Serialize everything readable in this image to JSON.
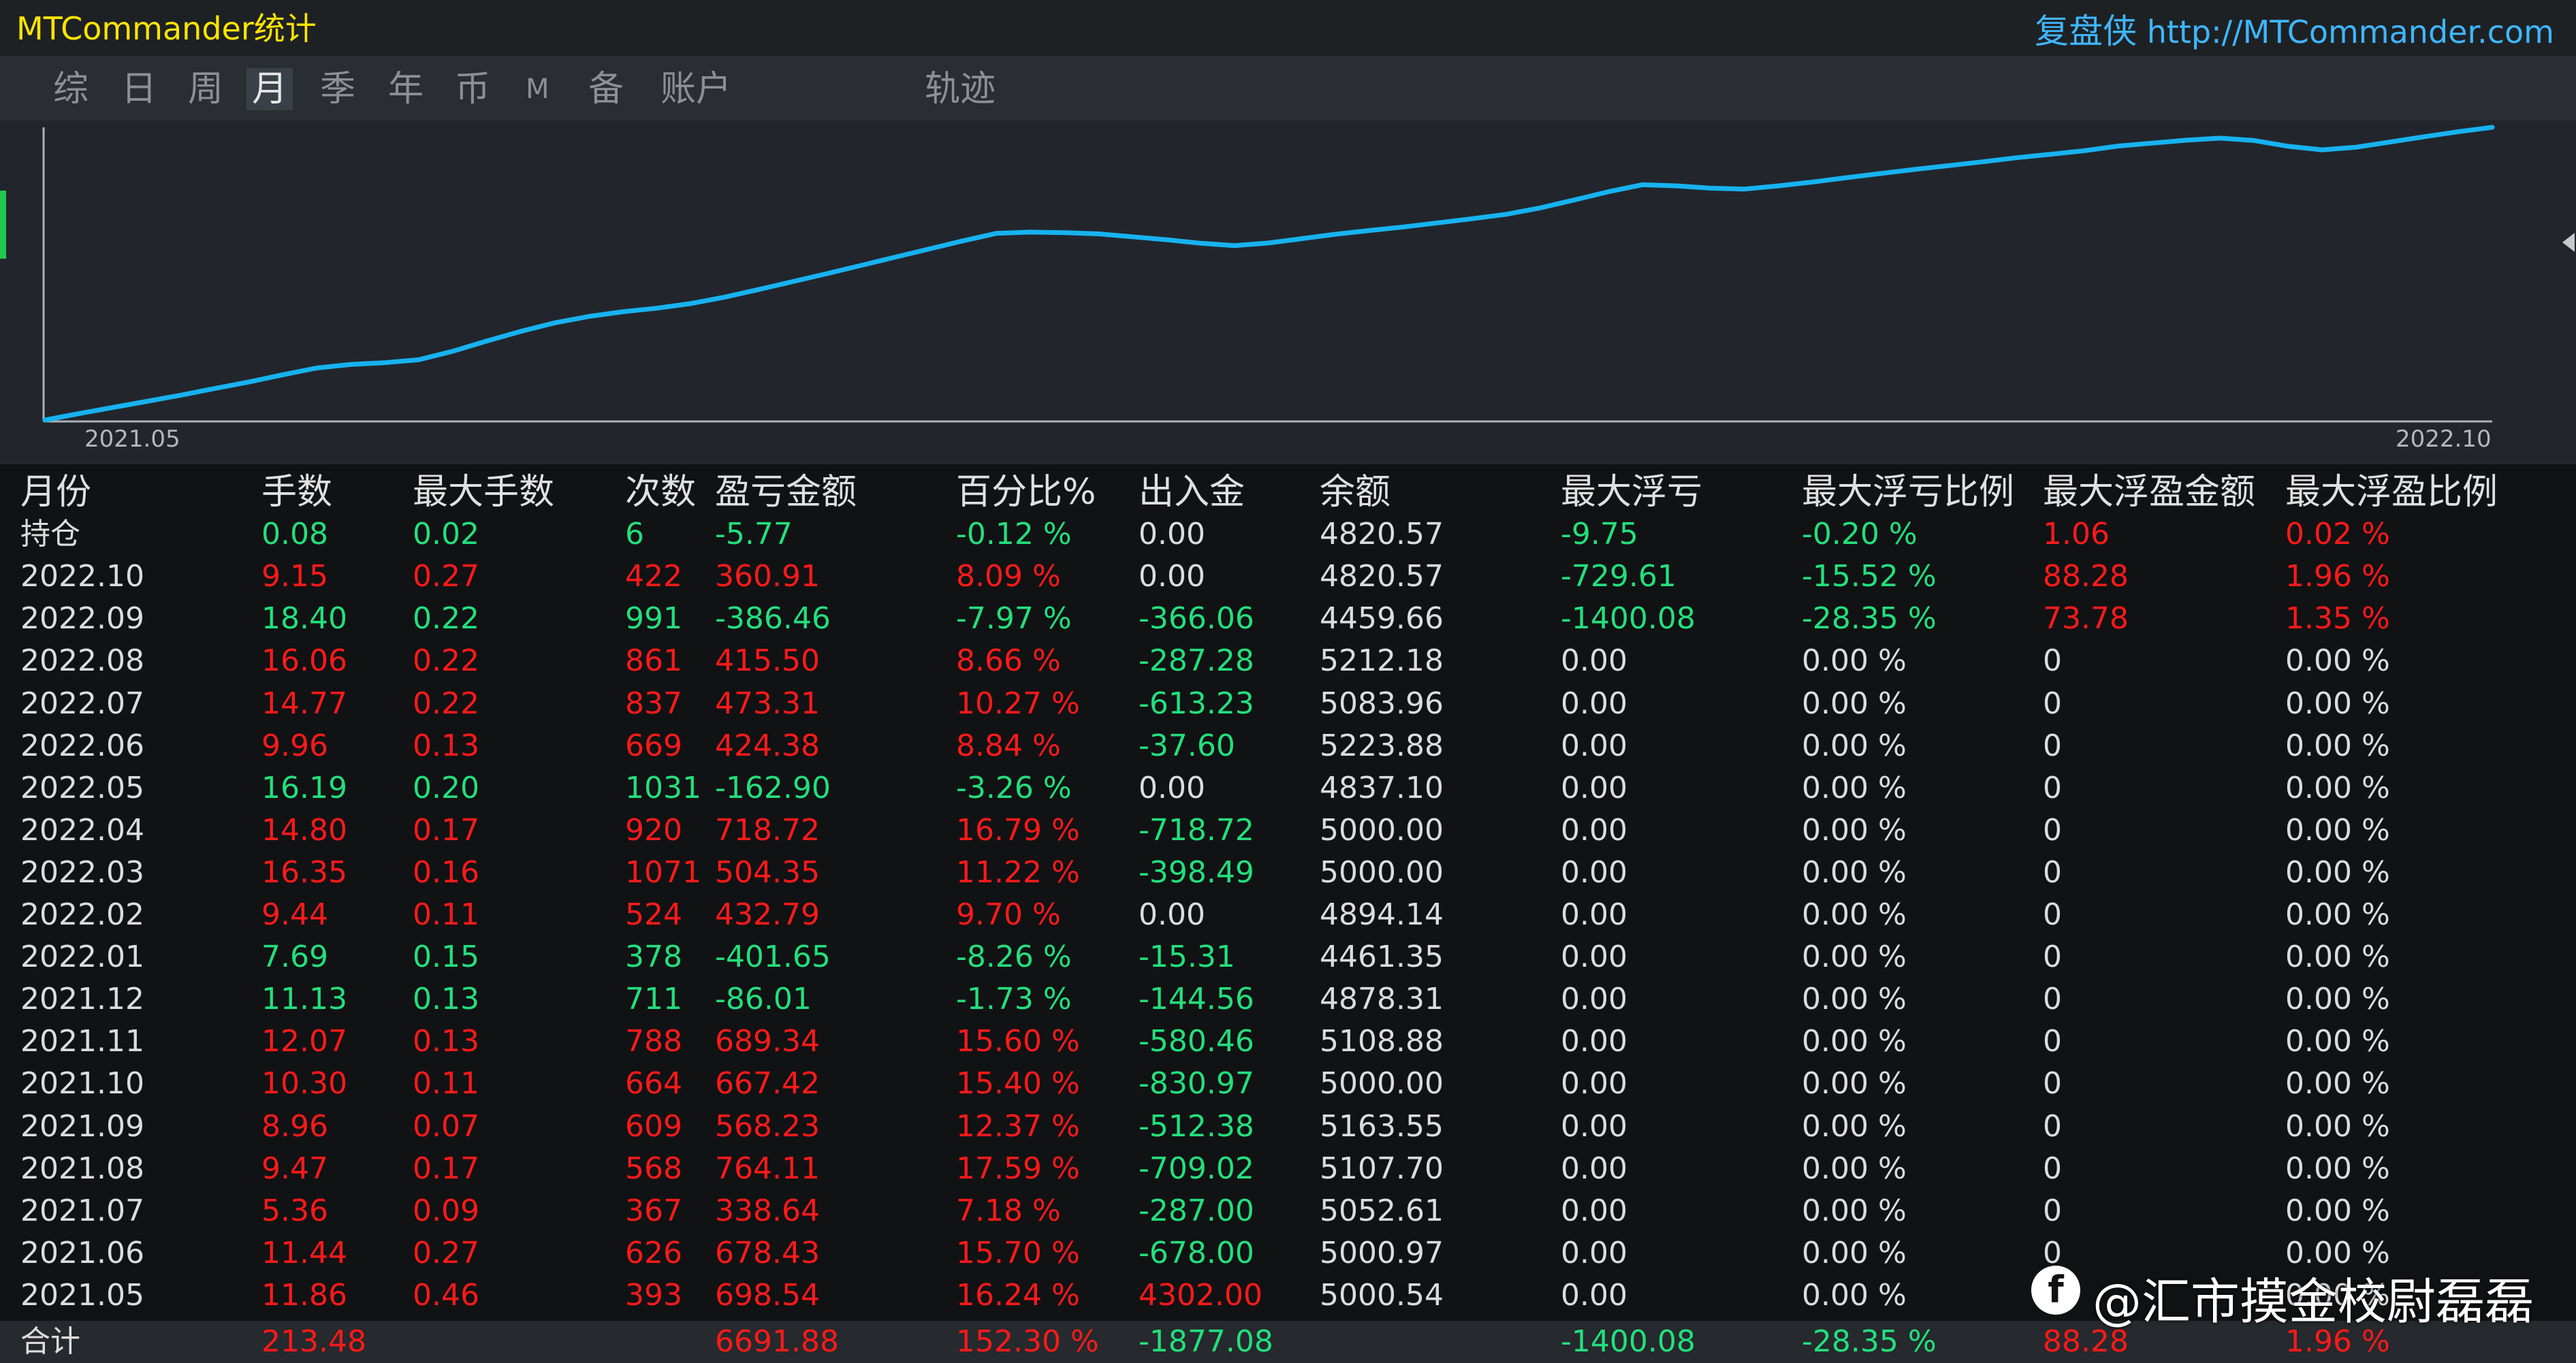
{
  "window": {
    "title": "MTCommander统计",
    "brand_cn": "复盘侠",
    "brand_url": "http://MTCommander.com"
  },
  "tabs": [
    {
      "label": "综",
      "active": false
    },
    {
      "label": "日",
      "active": false
    },
    {
      "label": "周",
      "active": false
    },
    {
      "label": "月",
      "active": true
    },
    {
      "label": "季",
      "active": false
    },
    {
      "label": "年",
      "active": false
    },
    {
      "label": "币",
      "active": false
    },
    {
      "label": "M",
      "active": false
    },
    {
      "label": "备",
      "active": false
    },
    {
      "label": "账户",
      "active": false
    },
    {
      "label": "轨迹",
      "active": false
    }
  ],
  "chart_data": {
    "type": "line",
    "x_start_label": "2021.05",
    "x_end_label": "2022.10",
    "line_color": "#17b2f0",
    "grid": false,
    "values": [
      0,
      2.2,
      4.3,
      6.4,
      8.5,
      10.8,
      13.0,
      15.5,
      17.8,
      19.0,
      19.6,
      20.6,
      23.5,
      27.0,
      30.3,
      33.2,
      35.4,
      37.0,
      38.2,
      39.8,
      42.0,
      44.6,
      47.3,
      50.0,
      52.8,
      55.6,
      58.4,
      61.2,
      63.8,
      64.2,
      64.0,
      63.6,
      62.6,
      61.6,
      60.4,
      59.6,
      60.5,
      62.0,
      63.5,
      64.8,
      66.0,
      67.4,
      68.8,
      70.3,
      72.5,
      75.2,
      78.0,
      80.4,
      80.0,
      79.2,
      78.9,
      80.0,
      81.3,
      82.8,
      84.2,
      85.6,
      86.9,
      88.2,
      89.6,
      90.8,
      92.0,
      93.6,
      94.6,
      95.6,
      96.3,
      95.5,
      93.5,
      92.3,
      93.2,
      95.0,
      96.8,
      98.5,
      100
    ]
  },
  "table": {
    "headers": [
      "月份",
      "手数",
      "最大手数",
      "次数",
      "盈亏金额",
      "百分比%",
      "出入金",
      "余额",
      "最大浮亏",
      "最大浮亏比例",
      "最大浮盈金额",
      "最大浮盈比例"
    ],
    "rows": [
      [
        "持仓",
        "0.08",
        "0.02",
        "6",
        "-5.77",
        "-0.12 %",
        "0.00",
        "4820.57",
        "-9.75",
        "-0.20 %",
        "1.06",
        "0.02 %"
      ],
      [
        "2022.10",
        "9.15",
        "0.27",
        "422",
        "360.91",
        "8.09 %",
        "0.00",
        "4820.57",
        "-729.61",
        "-15.52 %",
        "88.28",
        "1.96 %"
      ],
      [
        "2022.09",
        "18.40",
        "0.22",
        "991",
        "-386.46",
        "-7.97 %",
        "-366.06",
        "4459.66",
        "-1400.08",
        "-28.35 %",
        "73.78",
        "1.35 %"
      ],
      [
        "2022.08",
        "16.06",
        "0.22",
        "861",
        "415.50",
        "8.66 %",
        "-287.28",
        "5212.18",
        "0.00",
        "0.00 %",
        "0",
        "0.00 %"
      ],
      [
        "2022.07",
        "14.77",
        "0.22",
        "837",
        "473.31",
        "10.27 %",
        "-613.23",
        "5083.96",
        "0.00",
        "0.00 %",
        "0",
        "0.00 %"
      ],
      [
        "2022.06",
        "9.96",
        "0.13",
        "669",
        "424.38",
        "8.84 %",
        "-37.60",
        "5223.88",
        "0.00",
        "0.00 %",
        "0",
        "0.00 %"
      ],
      [
        "2022.05",
        "16.19",
        "0.20",
        "1031",
        "-162.90",
        "-3.26 %",
        "0.00",
        "4837.10",
        "0.00",
        "0.00 %",
        "0",
        "0.00 %"
      ],
      [
        "2022.04",
        "14.80",
        "0.17",
        "920",
        "718.72",
        "16.79 %",
        "-718.72",
        "5000.00",
        "0.00",
        "0.00 %",
        "0",
        "0.00 %"
      ],
      [
        "2022.03",
        "16.35",
        "0.16",
        "1071",
        "504.35",
        "11.22 %",
        "-398.49",
        "5000.00",
        "0.00",
        "0.00 %",
        "0",
        "0.00 %"
      ],
      [
        "2022.02",
        "9.44",
        "0.11",
        "524",
        "432.79",
        "9.70 %",
        "0.00",
        "4894.14",
        "0.00",
        "0.00 %",
        "0",
        "0.00 %"
      ],
      [
        "2022.01",
        "7.69",
        "0.15",
        "378",
        "-401.65",
        "-8.26 %",
        "-15.31",
        "4461.35",
        "0.00",
        "0.00 %",
        "0",
        "0.00 %"
      ],
      [
        "2021.12",
        "11.13",
        "0.13",
        "711",
        "-86.01",
        "-1.73 %",
        "-144.56",
        "4878.31",
        "0.00",
        "0.00 %",
        "0",
        "0.00 %"
      ],
      [
        "2021.11",
        "12.07",
        "0.13",
        "788",
        "689.34",
        "15.60 %",
        "-580.46",
        "5108.88",
        "0.00",
        "0.00 %",
        "0",
        "0.00 %"
      ],
      [
        "2021.10",
        "10.30",
        "0.11",
        "664",
        "667.42",
        "15.40 %",
        "-830.97",
        "5000.00",
        "0.00",
        "0.00 %",
        "0",
        "0.00 %"
      ],
      [
        "2021.09",
        "8.96",
        "0.07",
        "609",
        "568.23",
        "12.37 %",
        "-512.38",
        "5163.55",
        "0.00",
        "0.00 %",
        "0",
        "0.00 %"
      ],
      [
        "2021.08",
        "9.47",
        "0.17",
        "568",
        "764.11",
        "17.59 %",
        "-709.02",
        "5107.70",
        "0.00",
        "0.00 %",
        "0",
        "0.00 %"
      ],
      [
        "2021.07",
        "5.36",
        "0.09",
        "367",
        "338.64",
        "7.18 %",
        "-287.00",
        "5052.61",
        "0.00",
        "0.00 %",
        "0",
        "0.00 %"
      ],
      [
        "2021.06",
        "11.44",
        "0.27",
        "626",
        "678.43",
        "15.70 %",
        "-678.00",
        "5000.97",
        "0.00",
        "0.00 %",
        "0",
        "0.00 %"
      ],
      [
        "2021.05",
        "11.86",
        "0.46",
        "393",
        "698.54",
        "16.24 %",
        "4302.00",
        "5000.54",
        "0.00",
        "0.00 %",
        "0",
        "0.00 %"
      ]
    ],
    "total": [
      "合计",
      "213.48",
      "",
      "",
      "6691.88",
      "152.30 %",
      "-1877.08",
      "",
      "-1400.08",
      "-28.35 %",
      "88.28",
      "1.96 %"
    ],
    "colors": {
      "positive": "#ff1a1a",
      "negative": "#22e07c",
      "neutral": "#dcdcdc"
    }
  },
  "watermark": {
    "logo_glyph": "f",
    "text": "@汇市摸金校尉磊磊"
  }
}
